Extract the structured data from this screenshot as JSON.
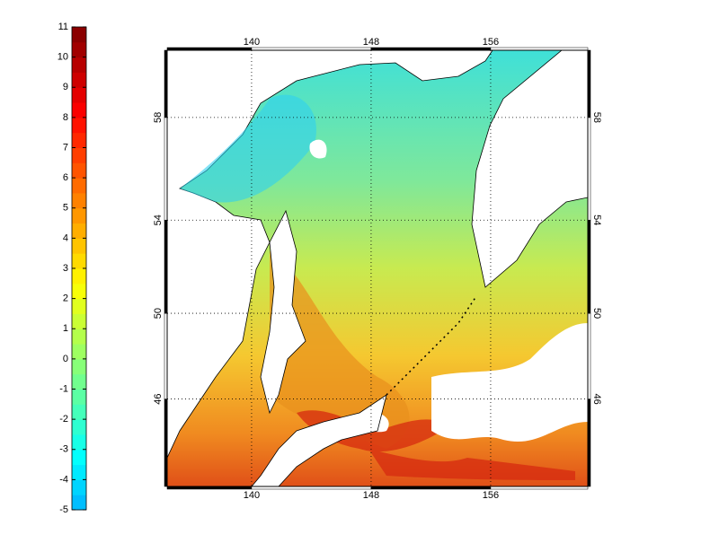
{
  "map": {
    "projection": "mercator",
    "lonlim": [
      134.35,
      162.5
    ],
    "latlim": [
      41.6,
      60.4
    ],
    "lonticks": [
      140,
      148,
      156
    ],
    "latticks": [
      46,
      50,
      54,
      58
    ],
    "grid": true
  },
  "colorbar": {
    "lim": [
      -5,
      11
    ],
    "ticks": [
      -5,
      -4,
      -3,
      -2,
      -1,
      0,
      1,
      2,
      3,
      4,
      5,
      6,
      7,
      8,
      9,
      10,
      11
    ],
    "colormap": "jet",
    "levels": 32
  }
}
